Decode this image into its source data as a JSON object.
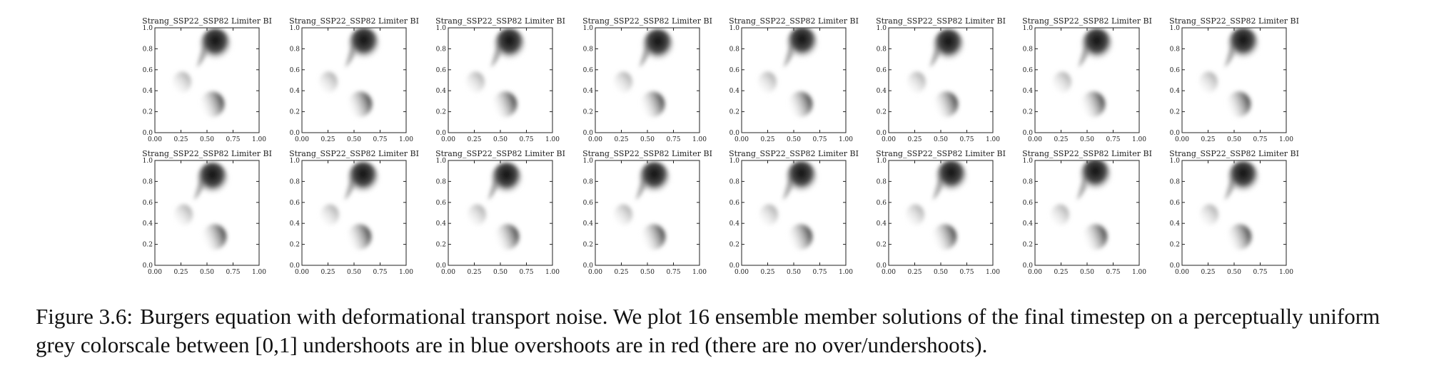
{
  "figure": {
    "panel_title": "Strang_SSP22_SSP82 Limiter BI",
    "panel_count": 16,
    "y_ticks": [
      "0.0",
      "0.2",
      "0.4",
      "0.6",
      "0.8",
      "1.0"
    ],
    "x_ticks": [
      "0.00",
      "0.25",
      "0.50",
      "0.75",
      "1.00"
    ],
    "colormap": "perceptually uniform grey",
    "colormap_range": [
      0,
      1
    ]
  },
  "chart_data": {
    "type": "heatmap",
    "panels": 16,
    "layout": "2 rows x 8 columns",
    "title": "Strang_SSP22_SSP82 Limiter BI",
    "x_ticks": [
      0.0,
      0.25,
      0.5,
      0.75,
      1.0
    ],
    "y_ticks": [
      0.0,
      0.2,
      0.4,
      0.6,
      0.8,
      1.0
    ],
    "xlim": [
      0,
      1
    ],
    "ylim": [
      0,
      1
    ]
  },
  "caption": {
    "label": "Figure 3.6:",
    "text": "Burgers equation with deformational transport noise. We plot 16 ensemble member solutions of the final timestep on a perceptually uniform grey colorscale between [0,1] undershoots are in blue overshoots are in red (there are no over/undershoots)."
  }
}
